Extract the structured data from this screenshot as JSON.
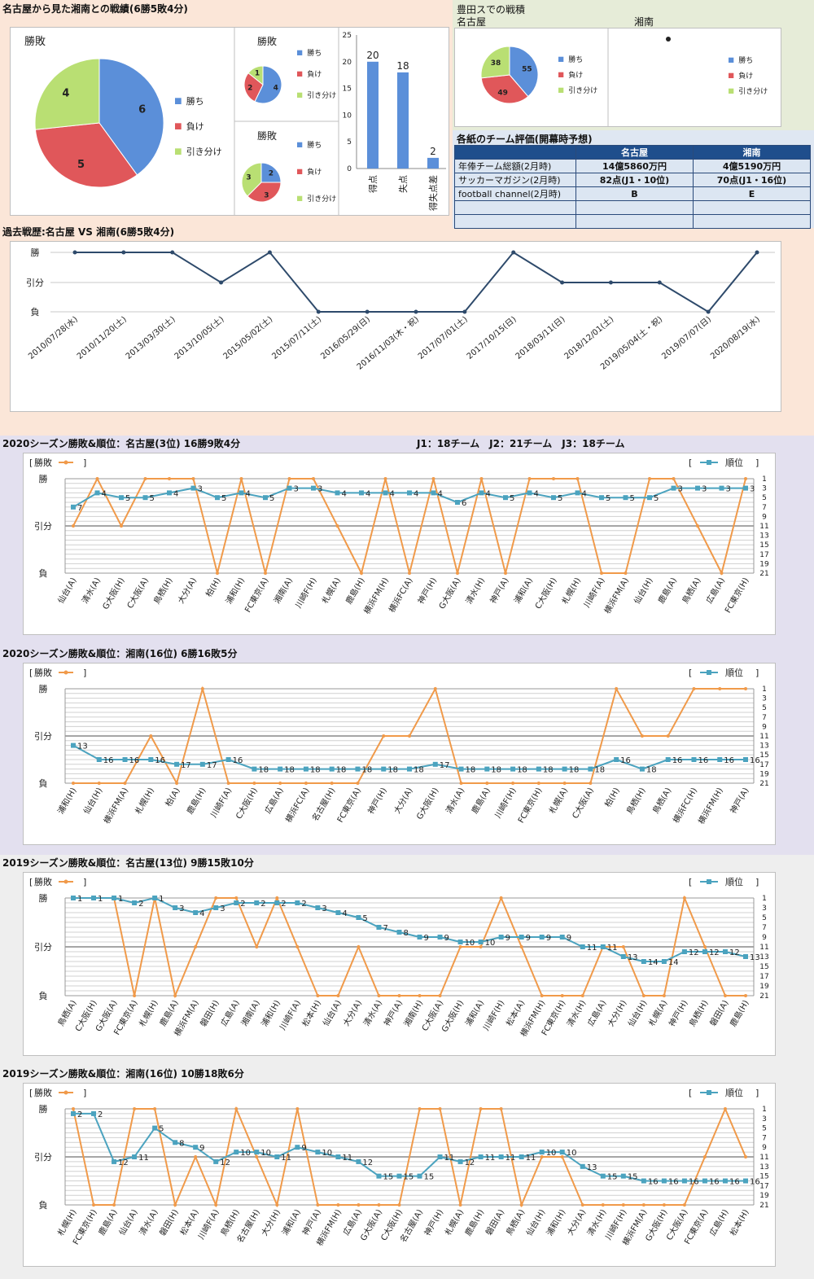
{
  "summary": {
    "title": "名古屋から見た湘南との戦績(6勝5敗4分)",
    "main_pie": {
      "title": "勝敗",
      "values": [
        6,
        5,
        4
      ]
    },
    "small_pie_1": {
      "title": "勝敗",
      "values": [
        4,
        2,
        1
      ]
    },
    "small_pie_2": {
      "title": "勝敗",
      "values": [
        2,
        3,
        3
      ]
    },
    "legend": [
      "勝ち",
      "負け",
      "引き分け"
    ],
    "bar": {
      "categories": [
        "得点",
        "失点",
        "得失点差"
      ],
      "values": [
        20,
        18,
        2
      ],
      "ylim": [
        0,
        25
      ],
      "ticks": [
        0,
        5,
        10,
        15,
        20,
        25
      ]
    }
  },
  "toyota": {
    "title": "豊田スでの戦積",
    "nagoya_label": "名古屋",
    "shonan_label": "湘南",
    "nagoya_pie": {
      "values": [
        55,
        49,
        38
      ]
    },
    "legend": [
      "勝ち",
      "負け",
      "引き分け"
    ]
  },
  "ratings": {
    "title": "各紙のチーム評価(開幕時予想)",
    "col_nagoya": "名古屋",
    "col_shonan": "湘南",
    "rows": [
      {
        "label": "年俸チーム総額(2月時)",
        "nagoya": "14億5860万円",
        "shonan": "4億5190万円"
      },
      {
        "label": "サッカーマガジン(2月時)",
        "nagoya": "82点(J1・10位)",
        "shonan": "70点(J1・16位)"
      },
      {
        "label": "football channel(2月時)",
        "nagoya": "B",
        "shonan": "E"
      }
    ]
  },
  "history": {
    "title": "過去戦歴:名古屋 VS 湘南(6勝5敗4分)",
    "y_labels": [
      "勝",
      "引分",
      "負"
    ],
    "dates": [
      "2010/07/28(水)",
      "2010/11/20(土)",
      "2013/03/30(土)",
      "2013/10/05(土)",
      "2015/05/02(土)",
      "2015/07/11(土)",
      "2016/05/29(日)",
      "2016/11/03(木・祝)",
      "2017/07/01(土)",
      "2017/10/15(日)",
      "2018/03/11(日)",
      "2018/12/01(土)",
      "2019/05/04(土・祝)",
      "2019/07/07(日)",
      "2020/08/19(水)"
    ],
    "results": [
      3,
      3,
      3,
      2,
      3,
      1,
      1,
      1,
      1,
      3,
      2,
      2,
      2,
      1,
      3
    ]
  },
  "season_header": {
    "teams_note": "J1：18チーム　J2：21チーム　J3：18チーム"
  },
  "chart_data": [
    {
      "type": "line",
      "title": "2020シーズン勝敗&順位：名古屋(3位) 16勝9敗4分",
      "legend_left": "勝敗",
      "legend_right": "順位",
      "y_left_labels": [
        "勝",
        "引分",
        "負"
      ],
      "y_right_ticks": [
        1,
        3,
        5,
        7,
        9,
        11,
        13,
        15,
        17,
        19,
        21
      ],
      "categories": [
        "仙台(A)",
        "清水(A)",
        "G大阪(H)",
        "C大阪(A)",
        "鳥栖(H)",
        "大分(A)",
        "柏(H)",
        "浦和(H)",
        "FC東京(A)",
        "湘南(A)",
        "川崎F(H)",
        "札幌(A)",
        "鹿島(H)",
        "横浜FM(H)",
        "横浜FC(A)",
        "神戸(H)",
        "G大阪(A)",
        "清水(H)",
        "神戸(A)",
        "浦和(A)",
        "C大阪(H)",
        "札幌(H)",
        "川崎F(A)",
        "横浜FM(A)",
        "仙台(H)",
        "鹿島(A)",
        "鳥栖(A)",
        "広島(A)",
        "FC東京(H)"
      ],
      "result": [
        2,
        3,
        2,
        3,
        3,
        3,
        1,
        3,
        1,
        3,
        3,
        2,
        1,
        3,
        1,
        3,
        1,
        3,
        1,
        3,
        3,
        3,
        1,
        1,
        3,
        3,
        2,
        1,
        3
      ],
      "rank": [
        7,
        4,
        5,
        5,
        4,
        3,
        5,
        4,
        5,
        3,
        3,
        4,
        4,
        4,
        4,
        4,
        6,
        4,
        5,
        4,
        5,
        4,
        5,
        5,
        5,
        3,
        3,
        3,
        3
      ]
    },
    {
      "type": "line",
      "title": "2020シーズン勝敗&順位：湘南(16位) 6勝16敗5分",
      "legend_left": "勝敗",
      "legend_right": "順位",
      "y_left_labels": [
        "勝",
        "引分",
        "負"
      ],
      "y_right_ticks": [
        1,
        3,
        5,
        7,
        9,
        11,
        13,
        15,
        17,
        19,
        21
      ],
      "categories": [
        "浦和(H)",
        "仙台(H)",
        "横浜FM(A)",
        "札幌(H)",
        "柏(A)",
        "鹿島(H)",
        "川崎F(A)",
        "C大阪(H)",
        "広島(A)",
        "横浜FC(A)",
        "名古屋(H)",
        "FC東京(A)",
        "神戸(H)",
        "大分(A)",
        "G大阪(H)",
        "清水(A)",
        "鹿島(A)",
        "川崎F(H)",
        "FC東京(H)",
        "札幌(A)",
        "C大阪(A)",
        "柏(H)",
        "鳥栖(H)",
        "鳥栖(A)",
        "横浜FC(H)",
        "横浜FM(H)",
        "神戸(A)"
      ],
      "result": [
        1,
        1,
        1,
        2,
        1,
        3,
        1,
        1,
        1,
        1,
        1,
        1,
        2,
        2,
        3,
        1,
        1,
        1,
        1,
        1,
        1,
        3,
        2,
        2,
        3,
        3,
        3
      ],
      "rank": [
        13,
        16,
        16,
        16,
        17,
        17,
        16,
        18,
        18,
        18,
        18,
        18,
        18,
        18,
        17,
        18,
        18,
        18,
        18,
        18,
        18,
        16,
        18,
        16,
        16,
        16,
        16
      ]
    },
    {
      "type": "line",
      "title": "2019シーズン勝敗&順位：名古屋(13位) 9勝15敗10分",
      "legend_left": "勝敗",
      "legend_right": "順位",
      "y_left_labels": [
        "勝",
        "引分",
        "負"
      ],
      "y_right_ticks": [
        1,
        3,
        5,
        7,
        9,
        11,
        13,
        15,
        17,
        19,
        21
      ],
      "categories": [
        "鳥栖(A)",
        "C大阪(H)",
        "G大阪(A)",
        "FC東京(A)",
        "札幌(H)",
        "鹿島(A)",
        "横浜FM(A)",
        "磐田(H)",
        "広島(A)",
        "湘南(A)",
        "浦和(H)",
        "川崎F(A)",
        "松本(H)",
        "仙台(A)",
        "大分(A)",
        "清水(A)",
        "神戸(A)",
        "湘南(H)",
        "C大阪(A)",
        "G大阪(H)",
        "浦和(A)",
        "川崎F(H)",
        "松本(A)",
        "横浜FM(H)",
        "FC東京(H)",
        "清水(H)",
        "広島(A)",
        "大分(H)",
        "仙台(H)",
        "札幌(A)",
        "神戸(H)",
        "鳥栖(H)",
        "磐田(A)",
        "鹿島(H)"
      ],
      "result": [
        3,
        3,
        3,
        1,
        3,
        1,
        2,
        3,
        3,
        2,
        3,
        2,
        1,
        1,
        2,
        1,
        1,
        1,
        1,
        2,
        2,
        3,
        2,
        1,
        1,
        1,
        2,
        2,
        1,
        1,
        3,
        2,
        1,
        1
      ],
      "rank": [
        1,
        1,
        1,
        2,
        1,
        3,
        4,
        3,
        2,
        2,
        2,
        2,
        3,
        4,
        5,
        7,
        8,
        9,
        9,
        10,
        10,
        9,
        9,
        9,
        9,
        11,
        11,
        13,
        14,
        14,
        12,
        12,
        12,
        13
      ]
    },
    {
      "type": "line",
      "title": "2019シーズン勝敗&順位：湘南(16位) 10勝18敗6分",
      "legend_left": "勝敗",
      "legend_right": "順位",
      "y_left_labels": [
        "勝",
        "引分",
        "負"
      ],
      "y_right_ticks": [
        1,
        3,
        5,
        7,
        9,
        11,
        13,
        15,
        17,
        19,
        21
      ],
      "categories": [
        "札幌(H)",
        "FC東京(H)",
        "鹿島(A)",
        "仙台(A)",
        "清水(A)",
        "磐田(H)",
        "松本(A)",
        "川崎F(A)",
        "鳥栖(H)",
        "名古屋(H)",
        "大分(H)",
        "浦和(A)",
        "神戸(A)",
        "横浜FM(H)",
        "広島(A)",
        "G大阪(A)",
        "C大阪(H)",
        "名古屋(A)",
        "神戸(H)",
        "札幌(A)",
        "鹿島(H)",
        "磐田(A)",
        "鳥栖(A)",
        "仙台(H)",
        "浦和(H)",
        "大分(A)",
        "清水(H)",
        "川崎F(H)",
        "横浜FM(A)",
        "G大阪(H)",
        "C大阪(A)",
        "FC東京(A)",
        "広島(H)",
        "松本(H)"
      ],
      "result": [
        3,
        1,
        1,
        3,
        3,
        1,
        2,
        1,
        3,
        2,
        1,
        3,
        1,
        1,
        1,
        1,
        1,
        3,
        3,
        1,
        3,
        3,
        1,
        2,
        2,
        1,
        1,
        1,
        1,
        1,
        1,
        2,
        3,
        2
      ],
      "rank": [
        2,
        2,
        12,
        11,
        5,
        8,
        9,
        12,
        10,
        10,
        11,
        9,
        10,
        11,
        12,
        15,
        15,
        15,
        11,
        12,
        11,
        11,
        11,
        10,
        10,
        13,
        15,
        15,
        16,
        16,
        16,
        16,
        16,
        16
      ]
    }
  ],
  "colors": {
    "blue": "#5b8fd9",
    "red": "#e0575a",
    "green": "#b9df73",
    "navy": "#2e4a6b",
    "orange": "#f09a4a",
    "teal": "#4ba3bf",
    "peach_bg": "#fbe6d8",
    "lavender_bg": "#e3e0ef",
    "gray_bg": "#eeeeee",
    "sage_bg": "#e6ecd8"
  }
}
